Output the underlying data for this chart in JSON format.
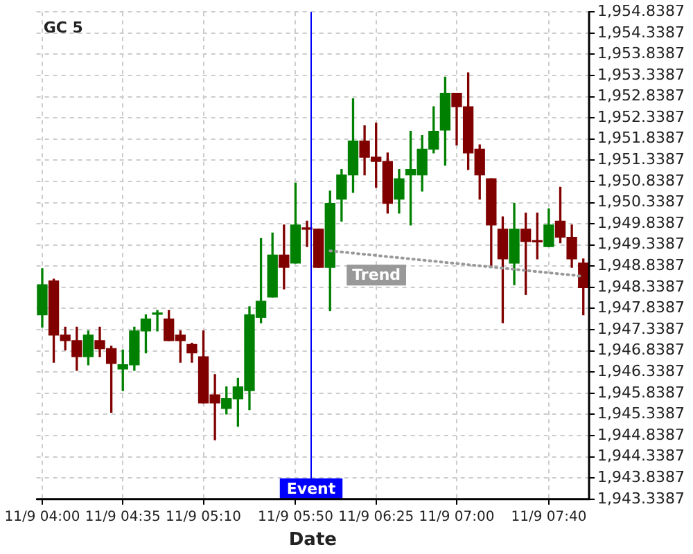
{
  "chart_data": {
    "type": "candlestick",
    "title": "GC 5",
    "xlabel": "Date",
    "categories": [
      "11/9 04:00",
      null,
      null,
      null,
      null,
      null,
      null,
      "11/9 04:35",
      null,
      null,
      null,
      null,
      null,
      null,
      "11/9 05:10",
      null,
      null,
      null,
      null,
      null,
      null,
      null,
      "11/9 05:50",
      null,
      null,
      null,
      null,
      null,
      null,
      "11/9 06:25",
      null,
      null,
      null,
      null,
      null,
      null,
      "11/9 07:00",
      null,
      null,
      null,
      null,
      null,
      null,
      null,
      "11/9 07:40",
      null,
      null,
      null
    ],
    "ohlc": [
      [
        1947.69,
        1948.78,
        1947.4,
        1948.4
      ],
      [
        1948.49,
        1948.53,
        1946.57,
        1947.21
      ],
      [
        1947.21,
        1947.4,
        1946.86,
        1947.08
      ],
      [
        1947.08,
        1947.4,
        1946.38,
        1946.7
      ],
      [
        1946.7,
        1947.31,
        1946.51,
        1947.21
      ],
      [
        1947.08,
        1947.4,
        1946.7,
        1946.89
      ],
      [
        1946.89,
        1946.95,
        1945.39,
        1946.54
      ],
      [
        1946.41,
        1946.86,
        1945.9,
        1946.51
      ],
      [
        1946.51,
        1947.4,
        1946.38,
        1947.31
      ],
      [
        1947.31,
        1947.69,
        1946.79,
        1947.59
      ],
      [
        1947.7,
        1947.79,
        1947.31,
        1947.72
      ],
      [
        1947.59,
        1947.79,
        1947.08,
        1947.08
      ],
      [
        1947.21,
        1947.31,
        1946.57,
        1947.08
      ],
      [
        1946.99,
        1947.02,
        1946.57,
        1946.79
      ],
      [
        1946.7,
        1947.31,
        1945.61,
        1945.61
      ],
      [
        1945.8,
        1946.28,
        1944.74,
        1945.61
      ],
      [
        1945.48,
        1945.99,
        1945.35,
        1945.71
      ],
      [
        1945.71,
        1946.19,
        1945.06,
        1945.99
      ],
      [
        1945.9,
        1947.88,
        1945.45,
        1947.69
      ],
      [
        1947.63,
        1949.49,
        1947.5,
        1948.01
      ],
      [
        1948.11,
        1949.62,
        1948.11,
        1949.1
      ],
      [
        1949.1,
        1949.81,
        1948.3,
        1948.81
      ],
      [
        1948.91,
        1950.8,
        1948.91,
        1949.81
      ],
      [
        1949.74,
        1949.9,
        1949.3,
        1949.71
      ],
      [
        1949.71,
        1949.71,
        1948.81,
        1948.81
      ],
      [
        1948.81,
        1950.61,
        1947.79,
        1950.32
      ],
      [
        1950.42,
        1951.12,
        1949.9,
        1950.99
      ],
      [
        1950.99,
        1952.79,
        1950.58,
        1951.79
      ],
      [
        1951.79,
        1952.15,
        1950.99,
        1951.41
      ],
      [
        1951.41,
        1952.21,
        1950.7,
        1951.31
      ],
      [
        1951.31,
        1951.51,
        1950.09,
        1950.32
      ],
      [
        1950.42,
        1951.12,
        1950.09,
        1950.9
      ],
      [
        1950.99,
        1952.02,
        1949.81,
        1951.12
      ],
      [
        1950.99,
        1951.92,
        1950.61,
        1951.6
      ],
      [
        1951.6,
        1952.6,
        1951.51,
        1952.02
      ],
      [
        1952.05,
        1953.3,
        1951.22,
        1952.92
      ],
      [
        1952.92,
        1952.92,
        1951.7,
        1952.6
      ],
      [
        1952.6,
        1953.4,
        1951.12,
        1951.51
      ],
      [
        1951.6,
        1951.7,
        1950.42,
        1950.99
      ],
      [
        1950.9,
        1950.9,
        1948.81,
        1949.81
      ],
      [
        1949.71,
        1950.0,
        1947.5,
        1949.01
      ],
      [
        1948.91,
        1950.32,
        1948.4,
        1949.71
      ],
      [
        1949.71,
        1950.09,
        1948.17,
        1949.42
      ],
      [
        1949.42,
        1950.09,
        1949.01,
        1949.41
      ],
      [
        1949.3,
        1950.19,
        1949.3,
        1949.81
      ],
      [
        1949.9,
        1950.7,
        1949.39,
        1949.52
      ],
      [
        1949.52,
        1949.81,
        1948.81,
        1949.01
      ],
      [
        1948.91,
        1949.01,
        1947.69,
        1948.33
      ]
    ],
    "colors": [
      "#008000",
      "#800000",
      "#800000",
      "#800000",
      "#008000",
      "#800000",
      "#800000",
      "#008000",
      "#008000",
      "#008000",
      "#008000",
      "#800000",
      "#800000",
      "#800000",
      "#800000",
      "#800000",
      "#008000",
      "#008000",
      "#008000",
      "#008000",
      "#008000",
      "#800000",
      "#008000",
      "#800000",
      "#800000",
      "#008000",
      "#008000",
      "#008000",
      "#800000",
      "#800000",
      "#800000",
      "#008000",
      "#008000",
      "#008000",
      "#008000",
      "#008000",
      "#800000",
      "#800000",
      "#800000",
      "#800000",
      "#800000",
      "#008000",
      "#800000",
      "#800000",
      "#008000",
      "#800000",
      "#800000",
      "#800000"
    ],
    "series": [
      {
        "type": "line",
        "name": "Trend",
        "color": "#999999",
        "line_style": "dotted",
        "marker": "none",
        "values": [
          null,
          null,
          null,
          null,
          null,
          null,
          null,
          null,
          null,
          null,
          null,
          null,
          null,
          null,
          null,
          null,
          null,
          null,
          null,
          null,
          null,
          null,
          null,
          null,
          null,
          1949.2,
          null,
          null,
          null,
          null,
          null,
          null,
          null,
          null,
          null,
          null,
          null,
          null,
          null,
          null,
          null,
          null,
          null,
          null,
          null,
          null,
          null,
          1948.6
        ]
      }
    ],
    "annotations": [
      "Event"
    ],
    "ylim": [
      1943.3387,
      1954.8387
    ],
    "yticks": [
      {
        "value": 1943.3387,
        "label": "1,943.3387"
      },
      {
        "value": 1943.8387,
        "label": "1,943.8387"
      },
      {
        "value": 1944.3387,
        "label": "1,944.3387"
      },
      {
        "value": 1944.8387,
        "label": "1,944.8387"
      },
      {
        "value": 1945.3387,
        "label": "1,945.3387"
      },
      {
        "value": 1945.8387,
        "label": "1,945.8387"
      },
      {
        "value": 1946.3387,
        "label": "1,946.3387"
      },
      {
        "value": 1946.8387,
        "label": "1,946.8387"
      },
      {
        "value": 1947.3387,
        "label": "1,947.3387"
      },
      {
        "value": 1947.8387,
        "label": "1,947.8387"
      },
      {
        "value": 1948.3387,
        "label": "1,948.3387"
      },
      {
        "value": 1948.8387,
        "label": "1,948.8387"
      },
      {
        "value": 1949.3387,
        "label": "1,949.3387"
      },
      {
        "value": 1949.8387,
        "label": "1,949.8387"
      },
      {
        "value": 1950.3387,
        "label": "1,950.3387"
      },
      {
        "value": 1950.8387,
        "label": "1,950.8387"
      },
      {
        "value": 1951.3387,
        "label": "1,951.3387"
      },
      {
        "value": 1951.8387,
        "label": "1,951.8387"
      },
      {
        "value": 1952.3387,
        "label": "1,952.3387"
      },
      {
        "value": 1952.8387,
        "label": "1,952.8387"
      },
      {
        "value": 1953.3387,
        "label": "1,953.3387"
      },
      {
        "value": 1953.8387,
        "label": "1,953.8387"
      },
      {
        "value": 1954.3387,
        "label": "1,954.3387"
      },
      {
        "value": 1954.8387,
        "label": "1,954.8387"
      }
    ],
    "grid": true,
    "legend": false
  }
}
